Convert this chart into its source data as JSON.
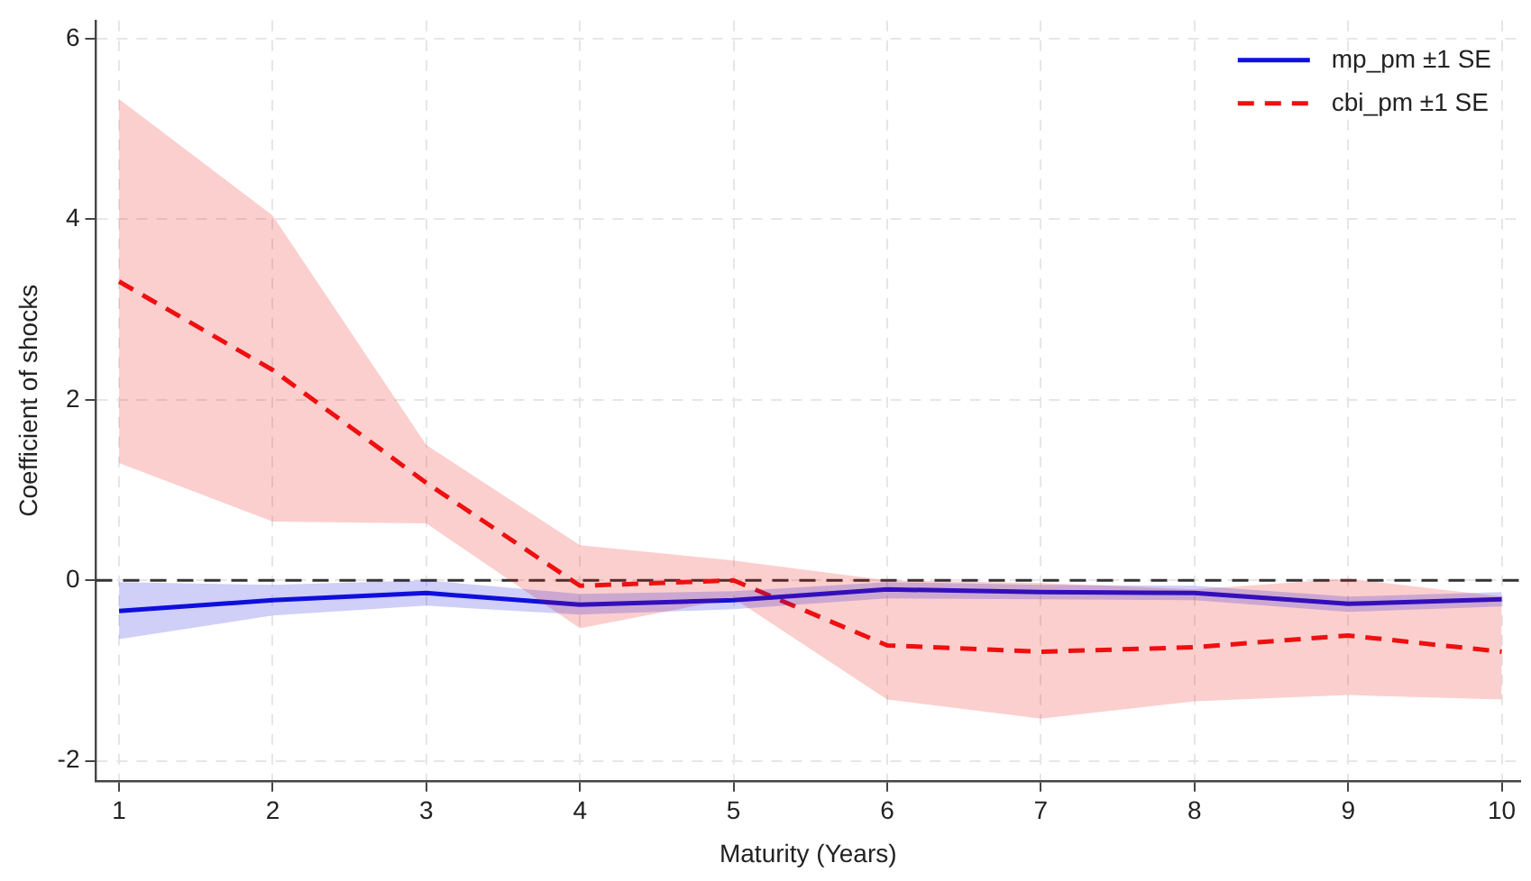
{
  "chart_data": {
    "type": "line",
    "xlabel": "Maturity (Years)",
    "ylabel": "Coefficient of shocks",
    "x": [
      1,
      2,
      3,
      4,
      5,
      6,
      7,
      8,
      9,
      10
    ],
    "series": [
      {
        "name": "mp_pm ±1 SE",
        "color": "#1010dd",
        "line_style": "solid",
        "values": [
          -0.34,
          -0.22,
          -0.14,
          -0.27,
          -0.22,
          -0.1,
          -0.13,
          -0.14,
          -0.26,
          -0.21
        ],
        "lower": [
          -0.65,
          -0.39,
          -0.28,
          -0.38,
          -0.32,
          -0.2,
          -0.21,
          -0.22,
          -0.35,
          -0.29
        ],
        "upper": [
          -0.02,
          -0.05,
          0.0,
          -0.15,
          -0.12,
          -0.02,
          -0.05,
          -0.06,
          -0.18,
          -0.13
        ]
      },
      {
        "name": "cbi_pm ±1 SE",
        "color": "#ee1111",
        "line_style": "dashed",
        "values": [
          3.31,
          2.33,
          1.08,
          -0.06,
          0.0,
          -0.72,
          -0.79,
          -0.74,
          -0.61,
          -0.79
        ],
        "lower": [
          1.3,
          0.65,
          0.63,
          -0.53,
          -0.2,
          -1.32,
          -1.53,
          -1.34,
          -1.27,
          -1.32
        ],
        "upper": [
          5.33,
          4.04,
          1.5,
          0.39,
          0.22,
          0.0,
          -0.03,
          -0.1,
          0.02,
          -0.18
        ]
      }
    ],
    "xlim": [
      0.85,
      10.12
    ],
    "xticks": [
      1,
      2,
      3,
      4,
      5,
      6,
      7,
      8,
      9,
      10
    ],
    "ylim": [
      -2.22,
      6.2
    ],
    "yticks": [
      -2,
      0,
      2,
      4,
      6
    ],
    "ref_lines": [
      {
        "axis": "y",
        "value": 0,
        "color": "#333333",
        "line_style": "dashed"
      }
    ],
    "grid": true,
    "legend": "top right",
    "marker": "none"
  }
}
